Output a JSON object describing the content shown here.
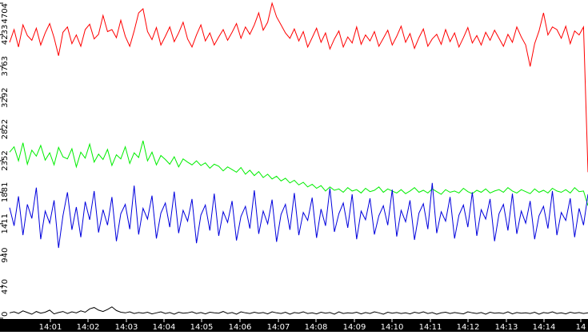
{
  "chart_data": {
    "type": "line",
    "title": "",
    "xlabel": "",
    "ylabel": "",
    "grid": false,
    "legend": "none",
    "y_ticks": [
      "0",
      "470",
      "940",
      "1411",
      "1881",
      "2352",
      "2822",
      "3292",
      "3763",
      "4233",
      "4704"
    ],
    "ylim": [
      0,
      4704
    ],
    "x_ticks": [
      "14:01",
      "14:02",
      "14:03",
      "14:04",
      "14:05",
      "14:06",
      "14:07",
      "14:08",
      "14:09",
      "14:10",
      "14:11",
      "14:12",
      "14:13",
      "14:14",
      "14"
    ],
    "series": [
      {
        "color": "#ff0000",
        "values": [
          4120,
          4310,
          4050,
          4380,
          4220,
          4150,
          4330,
          4080,
          4260,
          4400,
          4190,
          3920,
          4270,
          4350,
          4100,
          4230,
          4060,
          4310,
          4390,
          4170,
          4240,
          4520,
          4280,
          4310,
          4190,
          4450,
          4210,
          4060,
          4290,
          4560,
          4620,
          4280,
          4160,
          4340,
          4080,
          4210,
          4350,
          4130,
          4260,
          4420,
          4170,
          4050,
          4230,
          4380,
          4140,
          4260,
          4080,
          4200,
          4310,
          4150,
          4270,
          4400,
          4180,
          4350,
          4240,
          4380,
          4560,
          4300,
          4420,
          4704,
          4500,
          4380,
          4260,
          4180,
          4320,
          4140,
          4280,
          4050,
          4190,
          4330,
          4120,
          4260,
          4020,
          4170,
          4290,
          4050,
          4200,
          4110,
          4350,
          4090,
          4230,
          4140,
          4280,
          4060,
          4180,
          4300,
          4080,
          4210,
          4360,
          4120,
          4250,
          4030,
          4190,
          4320,
          4060,
          4170,
          4240,
          4090,
          4310,
          4130,
          4260,
          4050,
          4190,
          4340,
          4110,
          4220,
          4080,
          4270,
          4150,
          4300,
          4180,
          4060,
          4240,
          4120,
          4350,
          4200,
          4080,
          3760,
          4100,
          4290,
          4560,
          4230,
          4350,
          4310,
          4180,
          4360,
          4100,
          4290,
          4230,
          4350,
          2180
        ]
      },
      {
        "color": "#00ee00",
        "values": [
          2480,
          2560,
          2350,
          2620,
          2300,
          2510,
          2420,
          2580,
          2360,
          2470,
          2290,
          2550,
          2410,
          2380,
          2530,
          2260,
          2480,
          2390,
          2600,
          2330,
          2450,
          2370,
          2520,
          2280,
          2440,
          2380,
          2560,
          2310,
          2470,
          2400,
          2650,
          2350,
          2480,
          2290,
          2430,
          2370,
          2300,
          2410,
          2260,
          2380,
          2330,
          2290,
          2350,
          2280,
          2320,
          2240,
          2300,
          2270,
          2200,
          2260,
          2220,
          2180,
          2250,
          2150,
          2210,
          2130,
          2190,
          2100,
          2150,
          2080,
          2120,
          2050,
          2090,
          2020,
          2060,
          1990,
          2030,
          1960,
          2000,
          1940,
          1980,
          1900,
          1960,
          1910,
          1930,
          1880,
          1950,
          1900,
          1920,
          1870,
          1940,
          1890,
          1910,
          1960,
          1880,
          1930,
          1900,
          1870,
          1920,
          1860,
          1900,
          1950,
          1880,
          1910,
          1870,
          1930,
          1890,
          1850,
          1920,
          1880,
          1900,
          1870,
          1940,
          1890,
          1860,
          1910,
          1880,
          1930,
          1870,
          1900,
          1920,
          1880,
          1950,
          1900,
          1870,
          1920,
          1890,
          1860,
          1930,
          1880,
          1910,
          1870,
          1940,
          1900,
          1880,
          1920,
          1870,
          1950,
          1890,
          1900,
          1680
        ]
      },
      {
        "color": "#0000dd",
        "values": [
          1650,
          1380,
          1820,
          1240,
          1700,
          1490,
          1950,
          1180,
          1600,
          1420,
          1760,
          1050,
          1530,
          1880,
          1320,
          1660,
          1210,
          1740,
          1470,
          1900,
          1280,
          1620,
          1390,
          1810,
          1150,
          1560,
          1700,
          1330,
          1980,
          1250,
          1640,
          1480,
          1830,
          1190,
          1570,
          1720,
          1360,
          1890,
          1270,
          1610,
          1450,
          1780,
          1120,
          1540,
          1690,
          1310,
          1860,
          1230,
          1590,
          1430,
          1750,
          1160,
          1520,
          1670,
          1340,
          1910,
          1260,
          1600,
          1410,
          1770,
          1140,
          1550,
          1700,
          1320,
          1870,
          1240,
          1580,
          1460,
          1800,
          1200,
          1630,
          1380,
          1940,
          1290,
          1560,
          1720,
          1350,
          1850,
          1180,
          1600,
          1470,
          1790,
          1250,
          1530,
          1680,
          1390,
          1920,
          1220,
          1610,
          1440,
          1760,
          1170,
          1570,
          1710,
          1330,
          2020,
          1270,
          1590,
          1450,
          1810,
          1190,
          1540,
          1690,
          1360,
          1880,
          1230,
          1620,
          1480,
          1780,
          1150,
          1560,
          1700,
          1310,
          1860,
          1260,
          1600,
          1420,
          1750,
          1180,
          1530,
          1670,
          1340,
          1900,
          1240,
          1580,
          1460,
          1790,
          1210,
          1640,
          1390,
          1850
        ]
      },
      {
        "color": "#000000",
        "values": [
          80,
          95,
          70,
          110,
          85,
          60,
          100,
          75,
          90,
          120,
          65,
          85,
          100,
          70,
          95,
          80,
          110,
          90,
          140,
          160,
          120,
          100,
          130,
          170,
          115,
          90,
          80,
          95,
          70,
          85,
          75,
          90,
          65,
          80,
          95,
          70,
          85,
          60,
          90,
          75,
          80,
          95,
          70,
          85,
          65,
          90,
          80,
          75,
          100,
          70,
          85,
          60,
          95,
          80,
          70,
          90,
          75,
          85,
          65,
          95,
          80,
          70,
          90,
          60,
          85,
          75,
          95,
          70,
          80,
          65,
          90,
          75,
          85,
          60,
          95,
          70,
          80,
          75,
          90,
          65,
          85,
          70,
          95,
          80,
          60,
          90,
          75,
          85,
          70,
          80,
          65,
          90,
          75,
          95,
          70,
          85,
          60,
          80,
          90,
          70,
          85,
          75,
          65,
          95,
          80,
          70,
          85,
          60,
          90,
          75,
          80,
          70,
          95,
          65,
          85,
          75,
          80,
          70,
          90,
          60,
          85,
          75,
          95,
          70,
          80,
          65,
          90,
          75,
          85,
          70,
          80
        ]
      }
    ]
  }
}
